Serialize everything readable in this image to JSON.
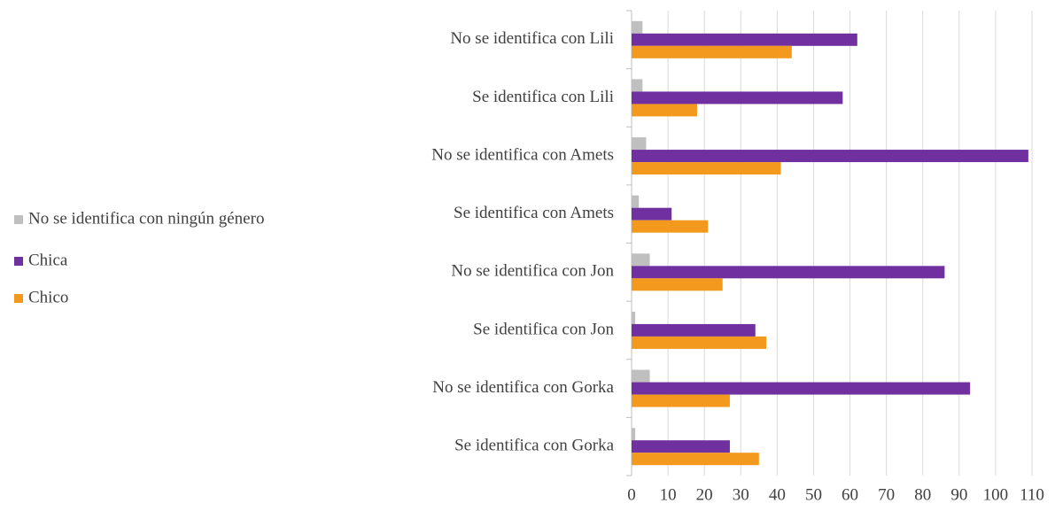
{
  "chart_data": {
    "type": "bar",
    "orientation": "horizontal",
    "categories": [
      "No se identifica con Lili",
      "Se identifica con Lili",
      "No se identifica con Amets",
      "Se identifica con Amets",
      "No se identifica con Jon",
      "Se identifica con Jon",
      "No se identifica con Gorka",
      "Se identifica con Gorka"
    ],
    "series": [
      {
        "name": "No se identifica con ningún género",
        "color": "#bfbfbf",
        "values": [
          3,
          3,
          4,
          2,
          5,
          1,
          5,
          1
        ]
      },
      {
        "name": "Chica",
        "color": "#7030a0",
        "values": [
          62,
          58,
          109,
          11,
          86,
          34,
          93,
          27
        ]
      },
      {
        "name": "Chico",
        "color": "#f39a1e",
        "values": [
          44,
          18,
          41,
          21,
          25,
          37,
          27,
          35
        ]
      }
    ],
    "xlim": [
      0,
      110
    ],
    "xticks": [
      0,
      10,
      20,
      30,
      40,
      50,
      60,
      70,
      80,
      90,
      100,
      110
    ],
    "grid": true,
    "legend": "left"
  }
}
